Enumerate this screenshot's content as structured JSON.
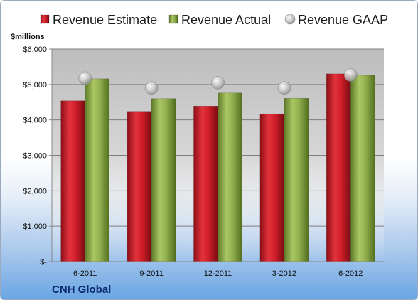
{
  "chart_data": {
    "type": "bar",
    "categories": [
      "6-2011",
      "9-2011",
      "12-2011",
      "3-2012",
      "6-2012"
    ],
    "series": [
      {
        "name": "Revenue Estimate",
        "kind": "bar",
        "color": "#d11f2a",
        "values": [
          4540,
          4240,
          4390,
          4170,
          5300
        ]
      },
      {
        "name": "Revenue Actual",
        "kind": "bar",
        "color": "#94b04f",
        "values": [
          5160,
          4600,
          4760,
          4610,
          5260
        ]
      },
      {
        "name": "Revenue GAAP",
        "kind": "marker",
        "color": "#c8c8c8",
        "values": [
          5180,
          4900,
          5050,
          4900,
          5270
        ]
      }
    ],
    "ylabel": "$millions",
    "ylim": [
      0,
      6000
    ],
    "yticks": [
      0,
      1000,
      2000,
      3000,
      4000,
      5000,
      6000
    ],
    "ytick_labels": [
      "$-",
      "$1,000",
      "$2,000",
      "$3,000",
      "$4,000",
      "$5,000",
      "$6,000"
    ],
    "grid": true,
    "legend_position": "top",
    "footer": "CNH Global"
  }
}
